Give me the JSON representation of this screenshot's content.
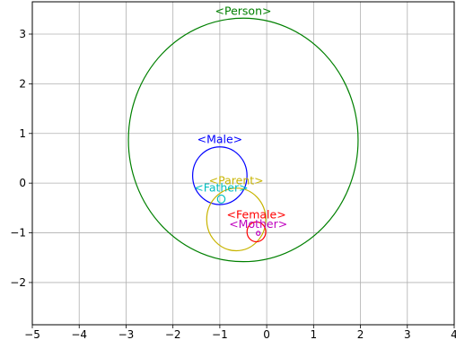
{
  "chart_data": {
    "type": "scatter",
    "title": "",
    "xlabel": "",
    "ylabel": "",
    "xlim": [
      -5,
      4
    ],
    "ylim": [
      -2.85,
      3.65
    ],
    "xticks": [
      -5,
      -4,
      -3,
      -2,
      -1,
      0,
      1,
      2,
      3,
      4
    ],
    "yticks": [
      -2,
      -1,
      0,
      1,
      2,
      3
    ],
    "xtick_labels": [
      "−5",
      "−4",
      "−3",
      "−2",
      "−1",
      "0",
      "1",
      "2",
      "3",
      "4"
    ],
    "ytick_labels": [
      "−2",
      "−1",
      "0",
      "1",
      "2",
      "3"
    ],
    "grid": true,
    "circles": [
      {
        "label": "<Person>",
        "cx": -0.5,
        "cy": 0.87,
        "r": 2.45,
        "color": "#008000"
      },
      {
        "label": "<Male>",
        "cx": -1.0,
        "cy": 0.15,
        "r": 0.58,
        "color": "#0000ff"
      },
      {
        "label": "<Parent>",
        "cx": -0.65,
        "cy": -0.73,
        "r": 0.63,
        "color": "#c8b400"
      },
      {
        "label": "<Father>",
        "cx": -0.97,
        "cy": -0.32,
        "r": 0.08,
        "color": "#00bfbf"
      },
      {
        "label": "<Female>",
        "cx": -0.22,
        "cy": -0.98,
        "r": 0.2,
        "color": "#ff0000"
      },
      {
        "label": "<Mother>",
        "cx": -0.18,
        "cy": -1.01,
        "r": 0.04,
        "color": "#bf00bf"
      }
    ]
  }
}
